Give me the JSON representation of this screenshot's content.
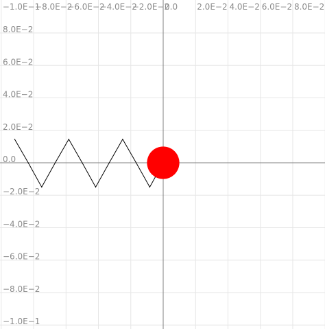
{
  "chart_data": {
    "type": "line",
    "title": "",
    "xlabel": "",
    "ylabel": "",
    "xlim": [
      -0.1,
      0.1
    ],
    "ylim": [
      -0.1,
      0.1
    ],
    "grid": true,
    "x_tick_labels": [
      "−1.0E−1",
      "−8.0E−2",
      "−6.0E−2",
      "−4.0E−2",
      "−2.0E−2",
      "0.0",
      "2.0E−2",
      "4.0E−2",
      "6.0E−2",
      "8.0E−2"
    ],
    "y_tick_labels": [
      "8.0E−2",
      "6.0E−2",
      "4.0E−2",
      "2.0E−2",
      "0.0",
      "−2.0E−2",
      "−4.0E−2",
      "−6.0E−2",
      "−8.0E−2",
      "−1.0E−1"
    ],
    "series": [
      {
        "color": "#000000",
        "x": [
          -0.0917,
          -0.0833,
          -0.075,
          -0.0667,
          -0.0583,
          -0.05,
          -0.0417,
          -0.0333,
          -0.025,
          -0.0167,
          -0.0083,
          0.0
        ],
        "y": [
          0.0145,
          0.0,
          -0.015,
          0.0,
          0.0145,
          0.0,
          -0.015,
          0.0,
          0.0145,
          0.0,
          -0.015,
          0.0
        ]
      }
    ],
    "marker": {
      "x": 0.0,
      "y": 0.0,
      "radius_data": 0.01,
      "color": "#ff0000"
    },
    "colors": {
      "grid": "#e6e6e6",
      "axis": "#808080",
      "tick_text": "#8c8c8c"
    }
  }
}
